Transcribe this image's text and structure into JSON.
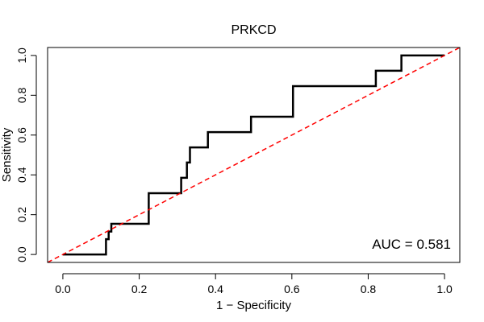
{
  "chart_data": {
    "type": "line",
    "title": "PRKCD",
    "xlabel": "1 − Specificity",
    "ylabel": "Sensitivity",
    "xlim": [
      -0.04,
      1.04
    ],
    "ylim": [
      -0.04,
      1.04
    ],
    "xticks": [
      0.0,
      0.2,
      0.4,
      0.6,
      0.8,
      1.0
    ],
    "yticks": [
      0.0,
      0.2,
      0.4,
      0.6,
      0.8,
      1.0
    ],
    "xtick_labels": [
      "0.0",
      "0.2",
      "0.4",
      "0.6",
      "0.8",
      "1.0"
    ],
    "ytick_labels": [
      "0.0",
      "0.2",
      "0.4",
      "0.6",
      "0.8",
      "1.0"
    ],
    "grid": false,
    "annotation": "AUC = 0.581",
    "series": [
      {
        "style": "solid",
        "color": "#000000",
        "x": [
          0.0,
          0.113,
          0.113,
          0.12,
          0.12,
          0.127,
          0.127,
          0.225,
          0.225,
          0.31,
          0.31,
          0.325,
          0.325,
          0.333,
          0.333,
          0.38,
          0.38,
          0.493,
          0.493,
          0.603,
          0.603,
          0.82,
          0.82,
          0.887,
          0.887,
          1.0
        ],
        "y": [
          0.0,
          0.0,
          0.077,
          0.077,
          0.115,
          0.115,
          0.154,
          0.154,
          0.308,
          0.308,
          0.385,
          0.385,
          0.462,
          0.462,
          0.538,
          0.538,
          0.615,
          0.615,
          0.692,
          0.692,
          0.846,
          0.846,
          0.923,
          0.923,
          1.0,
          1.0
        ]
      },
      {
        "style": "dashed",
        "color": "#ff0000",
        "x": [
          -0.04,
          1.04
        ],
        "y": [
          -0.04,
          1.04
        ]
      }
    ]
  }
}
